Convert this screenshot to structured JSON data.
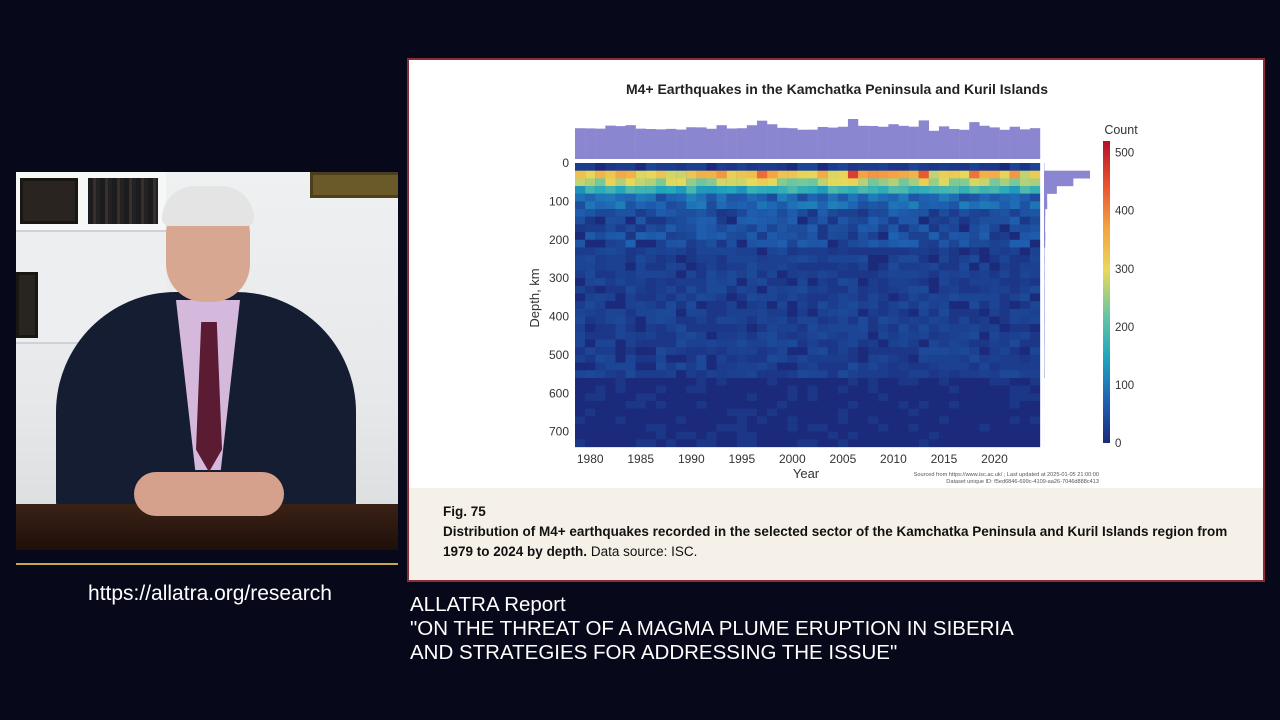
{
  "url": "https://allatra.org/research",
  "report": {
    "label": "ALLATRA Report",
    "line1": "\"ON THE THREAT OF A MAGMA PLUME ERUPTION IN SIBERIA",
    "line2": "AND STRATEGIES FOR ADDRESSING THE ISSUE\""
  },
  "caption": {
    "fig": "Fig. 75",
    "title": "Distribution of M4+ earthquakes recorded in the selected sector of the Kamchatka Peninsula and Kuril Islands region from 1979 to 2024 by depth.",
    "source": " Data source: ISC."
  },
  "chart_data": {
    "type": "heatmap",
    "title": "M4+ Earthquakes in the Kamchatka Peninsula and Kuril Islands",
    "xlabel": "Year",
    "ylabel": "Depth, km",
    "colorbar_label": "Count",
    "x_range": [
      1979,
      2024
    ],
    "y_range": [
      0,
      740
    ],
    "y_bin_km": 20,
    "x_ticks": [
      1980,
      1985,
      1990,
      1995,
      2000,
      2005,
      2010,
      2015,
      2020
    ],
    "y_ticks": [
      0,
      100,
      200,
      300,
      400,
      500,
      600,
      700
    ],
    "colorbar_ticks": [
      0,
      100,
      200,
      300,
      400,
      500
    ],
    "colorbar_range": [
      0,
      520
    ],
    "colorscale": [
      "#1b2a7a",
      "#1f63b3",
      "#1fa6be",
      "#6cc6a0",
      "#e8d95a",
      "#f5a142",
      "#e8512f",
      "#b3122b"
    ],
    "footnote_line1": "Sourced from https://www.isc.ac.uk/ ; Last updated at 2025-01-05 21:00:00",
    "footnote_line2": "Dataset unique ID: f5ed6846-699c-4109-aa26-7046d888c413"
  }
}
